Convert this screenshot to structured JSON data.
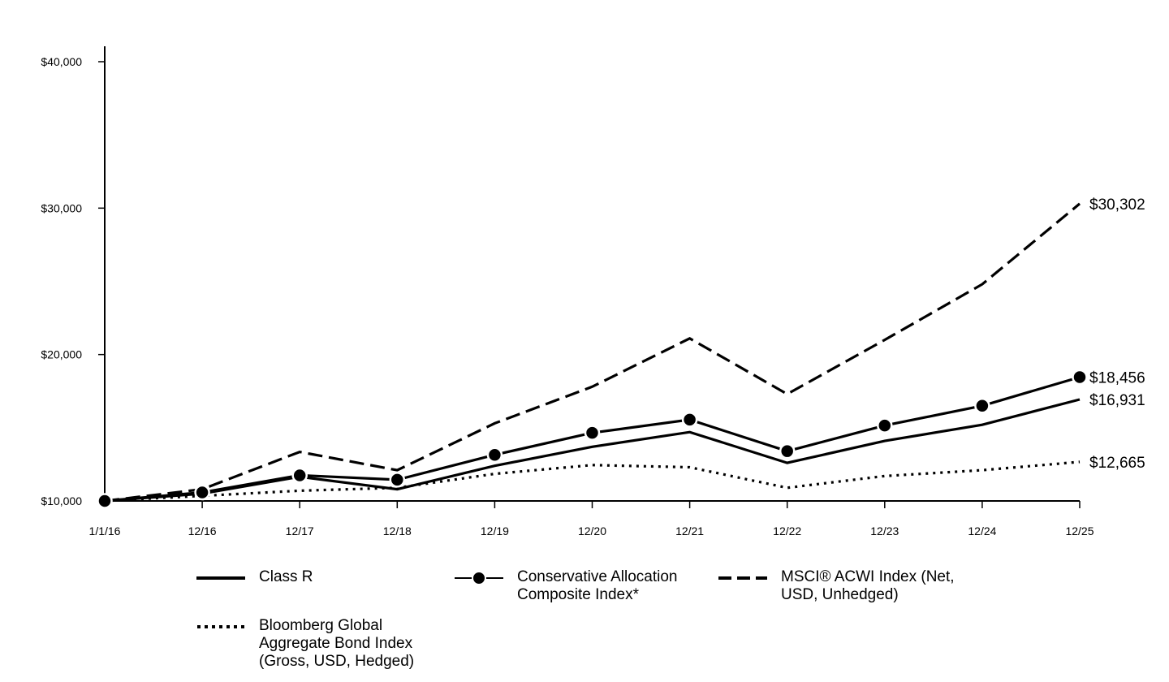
{
  "chart_data": {
    "type": "line",
    "x": [
      "1/1/16",
      "12/16",
      "12/17",
      "12/18",
      "12/19",
      "12/20",
      "12/21",
      "12/22",
      "12/23",
      "12/24",
      "12/25"
    ],
    "ylim": [
      10000,
      40000
    ],
    "yticks": [
      10000,
      20000,
      30000,
      40000
    ],
    "ytick_labels": [
      "$10,000",
      "$20,000",
      "$30,000",
      "$40,000"
    ],
    "grid": false,
    "legend_position": "bottom",
    "series": [
      {
        "name": "Class R",
        "style": "solid",
        "values": [
          10000,
          10500,
          11650,
          10800,
          12400,
          13700,
          14700,
          12600,
          14100,
          15200,
          16931
        ],
        "end_label": "$16,931"
      },
      {
        "name": "Conservative Allocation Composite Index*",
        "style": "solid-markers",
        "values": [
          10000,
          10580,
          11750,
          11450,
          13150,
          14650,
          15550,
          13400,
          15150,
          16500,
          18456
        ],
        "end_label": "$18,456"
      },
      {
        "name": "MSCI® ACWI Index (Net, USD, Unhedged)",
        "style": "dashed",
        "values": [
          10000,
          10800,
          13350,
          12100,
          15300,
          17800,
          21100,
          17300,
          21000,
          24800,
          30302
        ],
        "end_label": "$30,302"
      },
      {
        "name": "Bloomberg Global Aggregate Bond Index (Gross, USD, Hedged)",
        "style": "dotted",
        "values": [
          10000,
          10350,
          10700,
          10900,
          11850,
          12450,
          12300,
          10900,
          11700,
          12100,
          12665
        ],
        "end_label": "$12,665"
      }
    ]
  },
  "legend": {
    "class_r": "Class R",
    "composite": "Conservative Allocation\nComposite Index*",
    "msci": "MSCI® ACWI Index (Net,\nUSD, Unhedged)",
    "bloomberg": "Bloomberg Global\nAggregate Bond Index\n(Gross, USD, Hedged)"
  }
}
